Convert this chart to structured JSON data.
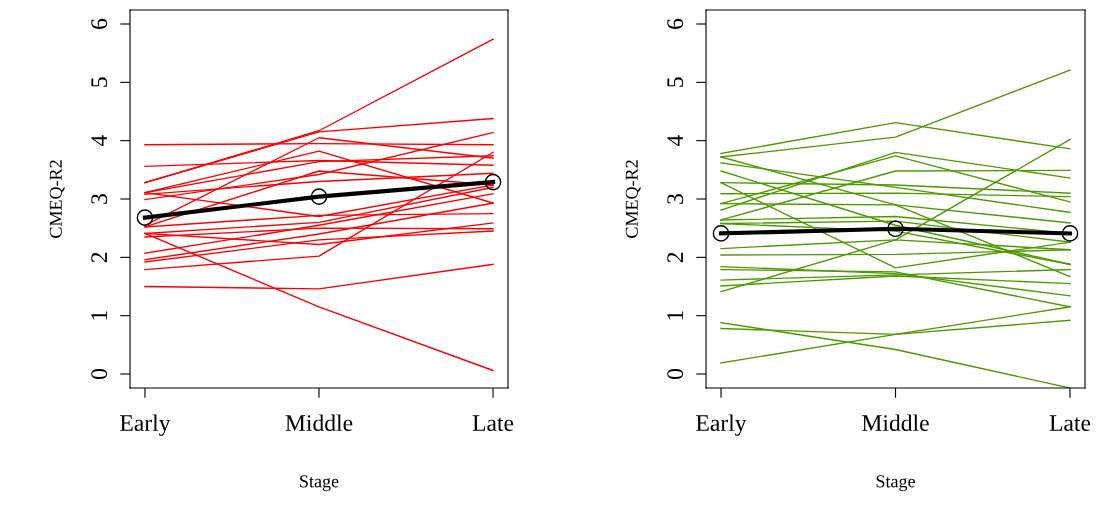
{
  "chart_data": [
    {
      "type": "line",
      "categories": [
        "Early",
        "Middle",
        "Late"
      ],
      "xlabel": "Stage",
      "ylabel": "CMEQ-R2",
      "ylim": [
        -0.24,
        6.24
      ],
      "yticks": [
        0,
        1,
        2,
        3,
        4,
        5,
        6
      ],
      "grid": false,
      "legend": false,
      "marker": "none",
      "line_style": "solid",
      "series": [
        {
          "color": "#ff0000",
          "values": [
            3.28,
            4.17,
            5.74
          ]
        },
        {
          "color": "#ff0000",
          "values": [
            3.28,
            4.15,
            4.38
          ]
        },
        {
          "color": "#ff0000",
          "values": [
            2.55,
            4.05,
            3.7
          ]
        },
        {
          "color": "#ff0000",
          "values": [
            3.93,
            3.95,
            3.93
          ]
        },
        {
          "color": "#ff0000",
          "values": [
            3.56,
            3.66,
            3.58
          ]
        },
        {
          "color": "#ff0000",
          "values": [
            3.11,
            3.82,
            2.93
          ]
        },
        {
          "color": "#ff0000",
          "values": [
            3.11,
            3.64,
            3.74
          ]
        },
        {
          "color": "#ff0000",
          "values": [
            2.99,
            3.42,
            4.14
          ]
        },
        {
          "color": "#ff0000",
          "values": [
            3.08,
            3.3,
            3.44
          ]
        },
        {
          "color": "#ff0000",
          "values": [
            2.52,
            3.48,
            3.24
          ]
        },
        {
          "color": "#ff0000",
          "values": [
            3.11,
            2.7,
            3.24
          ]
        },
        {
          "color": "#ff0000",
          "values": [
            2.41,
            2.6,
            3.2
          ]
        },
        {
          "color": "#ff0000",
          "values": [
            2.52,
            2.72,
            2.75
          ]
        },
        {
          "color": "#ff0000",
          "values": [
            2.35,
            2.5,
            2.49
          ]
        },
        {
          "color": "#ff0000",
          "values": [
            2.41,
            2.22,
            2.59
          ]
        },
        {
          "color": "#ff0000",
          "values": [
            2.07,
            2.55,
            3.09
          ]
        },
        {
          "color": "#ff0000",
          "values": [
            1.96,
            2.4,
            2.93
          ]
        },
        {
          "color": "#ff0000",
          "values": [
            1.92,
            2.3,
            2.45
          ]
        },
        {
          "color": "#ff0000",
          "values": [
            1.79,
            2.02,
            3.8
          ]
        },
        {
          "color": "#ff0000",
          "values": [
            1.5,
            1.46,
            1.88
          ]
        },
        {
          "color": "#ff0000",
          "values": [
            2.41,
            1.15,
            0.06
          ]
        },
        {
          "color": "#000000",
          "values": [
            2.68,
            3.04,
            3.29
          ],
          "marker": "circle"
        }
      ]
    },
    {
      "type": "line",
      "categories": [
        "Early",
        "Middle",
        "Late"
      ],
      "xlabel": "Stage",
      "ylabel": "CMEQ-R2",
      "ylim": [
        -0.24,
        6.24
      ],
      "yticks": [
        0,
        1,
        2,
        3,
        4,
        5,
        6
      ],
      "grid": false,
      "legend": false,
      "marker": "none",
      "line_style": "solid",
      "series": [
        {
          "color": "#4d9a00",
          "values": [
            3.72,
            4.06,
            5.21
          ]
        },
        {
          "color": "#4d9a00",
          "values": [
            3.78,
            4.31,
            3.86
          ]
        },
        {
          "color": "#4d9a00",
          "values": [
            1.41,
            2.3,
            4.02
          ]
        },
        {
          "color": "#4d9a00",
          "values": [
            2.81,
            3.8,
            3.36
          ]
        },
        {
          "color": "#4d9a00",
          "values": [
            2.92,
            3.74,
            2.95
          ]
        },
        {
          "color": "#4d9a00",
          "values": [
            2.64,
            3.48,
            3.49
          ]
        },
        {
          "color": "#4d9a00",
          "values": [
            3.62,
            3.2,
            2.77
          ]
        },
        {
          "color": "#4d9a00",
          "values": [
            3.48,
            2.55,
            1.88
          ]
        },
        {
          "color": "#4d9a00",
          "values": [
            3.28,
            3.24,
            3.1
          ]
        },
        {
          "color": "#4d9a00",
          "values": [
            3.09,
            3.1,
            3.04
          ]
        },
        {
          "color": "#4d9a00",
          "values": [
            2.92,
            2.9,
            2.59
          ]
        },
        {
          "color": "#4d9a00",
          "values": [
            3.72,
            2.9,
            1.67
          ]
        },
        {
          "color": "#4d9a00",
          "values": [
            2.64,
            2.7,
            2.41
          ]
        },
        {
          "color": "#4d9a00",
          "values": [
            2.58,
            2.62,
            2.26
          ]
        },
        {
          "color": "#4d9a00",
          "values": [
            3.28,
            1.82,
            2.26
          ]
        },
        {
          "color": "#4d9a00",
          "values": [
            2.15,
            2.3,
            2.13
          ]
        },
        {
          "color": "#4d9a00",
          "values": [
            2.04,
            2.05,
            2.13
          ]
        },
        {
          "color": "#4d9a00",
          "values": [
            1.84,
            1.72,
            1.34
          ]
        },
        {
          "color": "#4d9a00",
          "values": [
            1.79,
            1.75,
            1.15
          ]
        },
        {
          "color": "#4d9a00",
          "values": [
            1.61,
            1.7,
            1.79
          ]
        },
        {
          "color": "#4d9a00",
          "values": [
            1.51,
            1.68,
            1.55
          ]
        },
        {
          "color": "#4d9a00",
          "values": [
            2.58,
            2.45,
            1.88
          ]
        },
        {
          "color": "#4d9a00",
          "values": [
            0.88,
            0.42,
            -0.24
          ]
        },
        {
          "color": "#4d9a00",
          "values": [
            0.78,
            0.68,
            0.92
          ]
        },
        {
          "color": "#4d9a00",
          "values": [
            0.19,
            0.68,
            1.15
          ]
        },
        {
          "color": "#000000",
          "values": [
            2.41,
            2.49,
            2.41
          ],
          "marker": "circle"
        }
      ]
    }
  ]
}
